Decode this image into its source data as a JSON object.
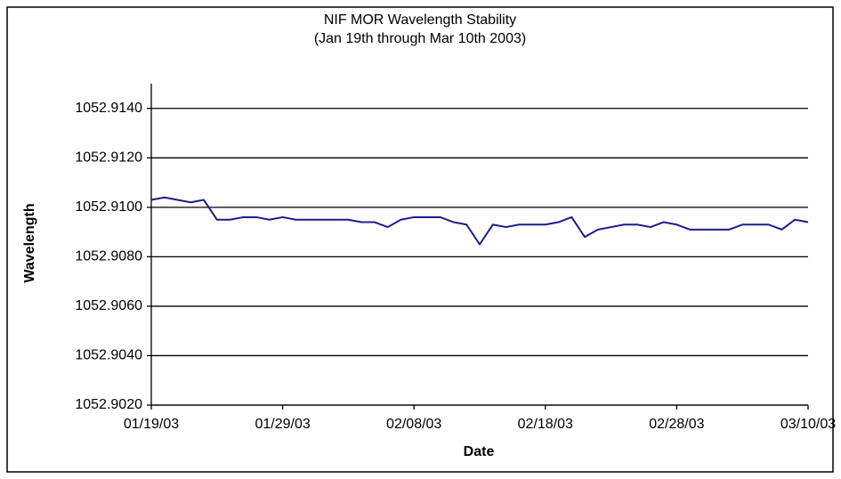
{
  "chart_data": {
    "type": "line",
    "title": "NIF MOR Wavelength Stability",
    "subtitle": "(Jan 19th through Mar 10th 2003)",
    "x_label": "Date",
    "y_label": "Wavelength",
    "x": [
      "2003-01-19",
      "2003-01-20",
      "2003-01-21",
      "2003-01-22",
      "2003-01-23",
      "2003-01-24",
      "2003-01-25",
      "2003-01-26",
      "2003-01-27",
      "2003-01-28",
      "2003-01-29",
      "2003-01-30",
      "2003-01-31",
      "2003-02-01",
      "2003-02-02",
      "2003-02-03",
      "2003-02-04",
      "2003-02-05",
      "2003-02-06",
      "2003-02-07",
      "2003-02-08",
      "2003-02-09",
      "2003-02-10",
      "2003-02-11",
      "2003-02-12",
      "2003-02-13",
      "2003-02-14",
      "2003-02-15",
      "2003-02-16",
      "2003-02-17",
      "2003-02-18",
      "2003-02-19",
      "2003-02-20",
      "2003-02-21",
      "2003-02-22",
      "2003-02-23",
      "2003-02-24",
      "2003-02-25",
      "2003-02-26",
      "2003-02-27",
      "2003-02-28",
      "2003-03-01",
      "2003-03-02",
      "2003-03-03",
      "2003-03-04",
      "2003-03-05",
      "2003-03-06",
      "2003-03-07",
      "2003-03-08",
      "2003-03-09",
      "2003-03-10"
    ],
    "series": [
      {
        "name": "Wavelength",
        "color": "#1c1c8c",
        "values": [
          1052.9103,
          1052.9104,
          1052.9103,
          1052.9102,
          1052.9103,
          1052.9095,
          1052.9095,
          1052.9096,
          1052.9096,
          1052.9095,
          1052.9096,
          1052.9095,
          1052.9095,
          1052.9095,
          1052.9095,
          1052.9095,
          1052.9094,
          1052.9094,
          1052.9092,
          1052.9095,
          1052.9096,
          1052.9096,
          1052.9096,
          1052.9094,
          1052.9093,
          1052.9085,
          1052.9093,
          1052.9092,
          1052.9093,
          1052.9093,
          1052.9093,
          1052.9094,
          1052.9096,
          1052.9088,
          1052.9091,
          1052.9092,
          1052.9093,
          1052.9093,
          1052.9092,
          1052.9094,
          1052.9093,
          1052.9091,
          1052.9091,
          1052.9091,
          1052.9091,
          1052.9093,
          1052.9093,
          1052.9093,
          1052.9091,
          1052.9095,
          1052.9094
        ]
      }
    ],
    "xlim": [
      "2003-01-19",
      "2003-03-10"
    ],
    "xticks": [
      {
        "value": "2003-01-19",
        "label": "01/19/03"
      },
      {
        "value": "2003-01-29",
        "label": "01/29/03"
      },
      {
        "value": "2003-02-08",
        "label": "02/08/03"
      },
      {
        "value": "2003-02-18",
        "label": "02/18/03"
      },
      {
        "value": "2003-02-28",
        "label": "02/28/03"
      },
      {
        "value": "2003-03-10",
        "label": "03/10/03"
      }
    ],
    "ylim": [
      1052.902,
      1052.915
    ],
    "yticks": [
      {
        "value": 1052.902,
        "label": "1052.9020"
      },
      {
        "value": 1052.904,
        "label": "1052.9040"
      },
      {
        "value": 1052.906,
        "label": "1052.9060"
      },
      {
        "value": 1052.908,
        "label": "1052.9080"
      },
      {
        "value": 1052.91,
        "label": "1052.9100"
      },
      {
        "value": 1052.912,
        "label": "1052.9120"
      },
      {
        "value": 1052.914,
        "label": "1052.9140"
      }
    ],
    "grid": true
  }
}
